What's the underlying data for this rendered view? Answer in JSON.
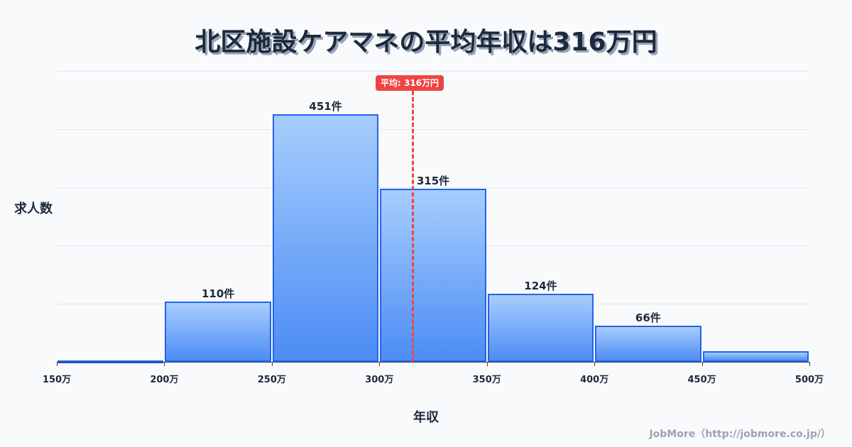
{
  "title": "北区施設ケアマネの平均年収は316万円",
  "footer": "JobMore（http://jobmore.co.jp/）",
  "chart_data": {
    "type": "bar",
    "title": "北区施設ケアマネの平均年収は316万円",
    "xlabel": "年収",
    "ylabel": "求人数",
    "x_ticks": [
      "150万",
      "200万",
      "250万",
      "300万",
      "350万",
      "400万",
      "450万",
      "500万"
    ],
    "categories": [
      "150-200万",
      "200-250万",
      "250-300万",
      "300-350万",
      "350-400万",
      "400-450万",
      "450-500万"
    ],
    "values": [
      1,
      110,
      451,
      315,
      124,
      66,
      20
    ],
    "value_labels": [
      "",
      "110件",
      "451件",
      "315件",
      "124件",
      "66件",
      ""
    ],
    "ylim": [
      0,
      530
    ],
    "grid": true,
    "mean": {
      "value": 316,
      "label": "平均: 316万円",
      "color": "#ef4444"
    },
    "bar_color": "#4c8cf5",
    "bar_border_color": "#2563eb"
  }
}
